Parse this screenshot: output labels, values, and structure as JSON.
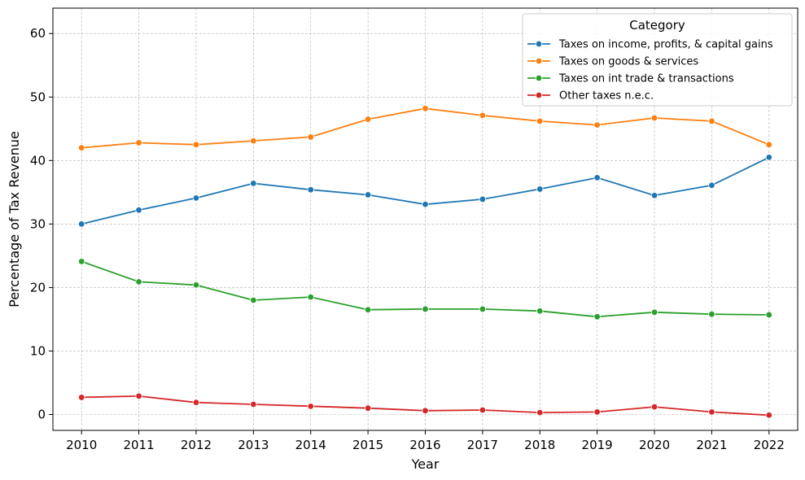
{
  "chart_data": {
    "type": "line",
    "title": "",
    "xlabel": "Year",
    "ylabel": "Percentage of Tax Revenue",
    "x": [
      "2010",
      "2011",
      "2012",
      "2013",
      "2014",
      "2015",
      "2016",
      "2017",
      "2018",
      "2019",
      "2020",
      "2021",
      "2022"
    ],
    "y_ticks": [
      "0",
      "10",
      "20",
      "30",
      "40",
      "50",
      "60"
    ],
    "ylim": [
      -2.5,
      64
    ],
    "grid": true,
    "legend": {
      "title": "Category",
      "placement": "top-right"
    },
    "series": [
      {
        "name": "Taxes on income, profits, & capital gains",
        "color": "#1f77b4",
        "values": [
          30.0,
          32.2,
          34.1,
          36.4,
          35.4,
          34.6,
          33.1,
          33.9,
          35.5,
          37.3,
          34.5,
          36.1,
          40.5
        ]
      },
      {
        "name": "Taxes on goods & services",
        "color": "#ff7f0e",
        "values": [
          42.0,
          42.8,
          42.5,
          43.1,
          43.7,
          46.5,
          48.2,
          47.1,
          46.2,
          45.6,
          46.7,
          46.2,
          42.5
        ]
      },
      {
        "name": "Taxes on int trade & transactions",
        "color": "#2ca02c",
        "values": [
          24.1,
          20.9,
          20.4,
          18.0,
          18.5,
          16.5,
          16.6,
          16.6,
          16.3,
          15.4,
          16.1,
          15.8,
          15.7
        ]
      },
      {
        "name": "Other taxes n.e.c.",
        "color": "#d62728",
        "values": [
          2.7,
          2.9,
          1.9,
          1.6,
          1.3,
          1.0,
          0.6,
          0.7,
          0.3,
          0.4,
          1.2,
          0.4,
          -0.1
        ]
      }
    ]
  }
}
